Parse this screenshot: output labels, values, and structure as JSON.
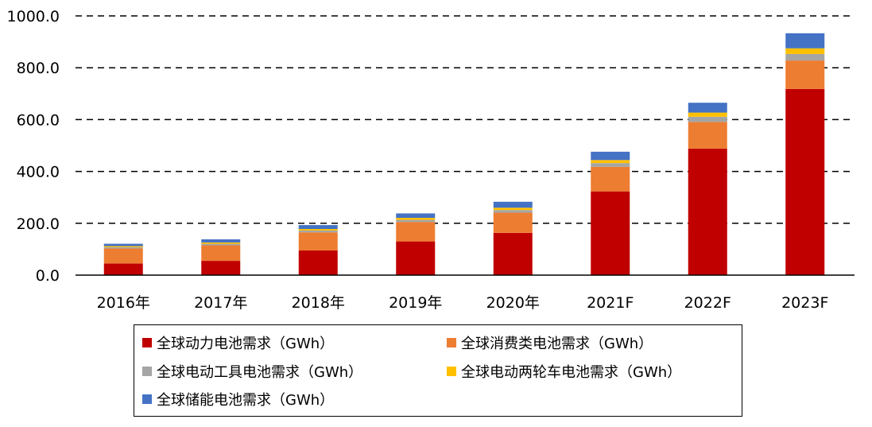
{
  "chart_data": {
    "type": "bar",
    "stacked": true,
    "title": "",
    "xlabel": "",
    "ylabel": "",
    "ylim": [
      0,
      1000
    ],
    "yticks": [
      "0.0",
      "200.0",
      "400.0",
      "600.0",
      "800.0",
      "1000.0"
    ],
    "grid": "dashed horizontal",
    "legend_position": "bottom",
    "categories": [
      "2016年",
      "2017年",
      "2018年",
      "2019年",
      "2020年",
      "2021F",
      "2022F",
      "2023F"
    ],
    "series": [
      {
        "name": "全球动力电池需求（GWh）",
        "color": "#C00000",
        "values": [
          45,
          55,
          95,
          130,
          163,
          323,
          488,
          718
        ]
      },
      {
        "name": "全球消费类电池需求（GWh）",
        "color": "#ED7D31",
        "values": [
          58,
          60,
          70,
          75,
          78,
          95,
          103,
          110
        ]
      },
      {
        "name": "全球电动工具电池需求（GWh）",
        "color": "#A5A5A5",
        "values": [
          5,
          6,
          7,
          8,
          10,
          14,
          20,
          25
        ]
      },
      {
        "name": "全球电动两轮车电池需求（GWh）",
        "color": "#FFC000",
        "values": [
          4,
          5,
          6,
          8,
          9,
          12,
          16,
          22
        ]
      },
      {
        "name": "全球储能电池需求（GWh）",
        "color": "#4472C4",
        "values": [
          9,
          12,
          15,
          17,
          23,
          32,
          38,
          58
        ]
      }
    ]
  }
}
